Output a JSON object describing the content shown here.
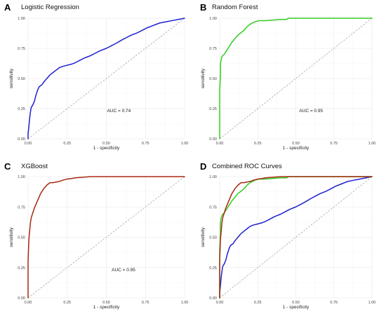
{
  "colors": {
    "logistic": "#1f1fcf",
    "random_forest": "#33cc1f",
    "xgboost": "#a8280f",
    "diagonal": "#9a9a9a"
  },
  "chart_data": [
    {
      "panel": "A",
      "type": "line",
      "title": "Logistic Regression",
      "xlabel": "1 - specificity",
      "ylabel": "sensitivity",
      "xlim": [
        0,
        1
      ],
      "ylim": [
        0,
        1
      ],
      "xticks": [
        "0.00",
        "0.25",
        "0.50",
        "0.75",
        "1.00"
      ],
      "yticks": [
        "0.00",
        "0.25",
        "0.50",
        "0.75",
        "1.00"
      ],
      "grid": true,
      "annotation": "AUC = 0.74",
      "series": [
        {
          "key": "logistic",
          "x": [
            0,
            0,
            0.005,
            0.01,
            0.015,
            0.02,
            0.03,
            0.04,
            0.05,
            0.06,
            0.07,
            0.08,
            0.09,
            0.1,
            0.12,
            0.14,
            0.16,
            0.18,
            0.2,
            0.22,
            0.25,
            0.28,
            0.3,
            0.33,
            0.36,
            0.4,
            0.43,
            0.46,
            0.5,
            0.53,
            0.56,
            0.6,
            0.63,
            0.66,
            0.7,
            0.73,
            0.76,
            0.8,
            0.84,
            0.88,
            0.92,
            0.96,
            1.0
          ],
          "y": [
            0,
            0.04,
            0.1,
            0.17,
            0.22,
            0.26,
            0.28,
            0.31,
            0.36,
            0.4,
            0.43,
            0.44,
            0.45,
            0.47,
            0.5,
            0.53,
            0.55,
            0.57,
            0.59,
            0.6,
            0.61,
            0.62,
            0.63,
            0.65,
            0.67,
            0.69,
            0.71,
            0.73,
            0.75,
            0.77,
            0.79,
            0.82,
            0.84,
            0.86,
            0.88,
            0.9,
            0.92,
            0.94,
            0.96,
            0.97,
            0.98,
            0.99,
            1.0
          ]
        }
      ]
    },
    {
      "panel": "B",
      "type": "line",
      "title": "Random Forest",
      "xlabel": "1 - specificity",
      "ylabel": "sensitivity",
      "xlim": [
        0,
        1
      ],
      "ylim": [
        0,
        1
      ],
      "xticks": [
        "0.00",
        "0.25",
        "0.50",
        "0.75",
        "1.00"
      ],
      "yticks": [
        "0.00",
        "0.25",
        "0.50",
        "0.75",
        "1.00"
      ],
      "grid": true,
      "annotation": "AUC = 0.95",
      "series": [
        {
          "key": "random_forest",
          "x": [
            0,
            0,
            0.005,
            0.005,
            0.01,
            0.015,
            0.02,
            0.03,
            0.04,
            0.05,
            0.06,
            0.07,
            0.08,
            0.1,
            0.12,
            0.14,
            0.16,
            0.18,
            0.2,
            0.23,
            0.26,
            0.3,
            0.35,
            0.4,
            0.44,
            0.45,
            0.5,
            0.6,
            0.7,
            0.8,
            0.9,
            1.0
          ],
          "y": [
            0,
            0.4,
            0.52,
            0.62,
            0.66,
            0.68,
            0.69,
            0.7,
            0.72,
            0.74,
            0.76,
            0.78,
            0.8,
            0.83,
            0.86,
            0.88,
            0.9,
            0.93,
            0.95,
            0.97,
            0.98,
            0.98,
            0.985,
            0.99,
            0.99,
            1.0,
            1.0,
            1.0,
            1.0,
            1.0,
            1.0,
            1.0
          ]
        }
      ]
    },
    {
      "panel": "C",
      "type": "line",
      "title": "XGBoost",
      "xlabel": "1 - specificity",
      "ylabel": "sensitivity",
      "xlim": [
        0,
        1
      ],
      "ylim": [
        0,
        1
      ],
      "xticks": [
        "0.00",
        "0.25",
        "0.50",
        "0.75",
        "1.00"
      ],
      "yticks": [
        "0.00",
        "0.25",
        "0.50",
        "0.75",
        "1.00"
      ],
      "grid": true,
      "annotation": "AUC = 0.95",
      "series": [
        {
          "key": "xgboost",
          "x": [
            0,
            0,
            0.005,
            0.01,
            0.015,
            0.02,
            0.03,
            0.04,
            0.05,
            0.06,
            0.07,
            0.08,
            0.1,
            0.12,
            0.14,
            0.16,
            0.18,
            0.2,
            0.22,
            0.25,
            0.28,
            0.3,
            0.35,
            0.4,
            0.45,
            0.5,
            0.6,
            0.7,
            0.8,
            0.9,
            1.0
          ],
          "y": [
            0,
            0.3,
            0.48,
            0.55,
            0.62,
            0.66,
            0.7,
            0.74,
            0.77,
            0.8,
            0.83,
            0.86,
            0.9,
            0.93,
            0.95,
            0.95,
            0.955,
            0.96,
            0.97,
            0.98,
            0.985,
            0.99,
            0.995,
            1.0,
            1.0,
            1.0,
            1.0,
            1.0,
            1.0,
            1.0,
            1.0
          ]
        }
      ]
    },
    {
      "panel": "D",
      "type": "line",
      "title": "Combined ROC Curves",
      "xlabel": "1 - specificity",
      "ylabel": "sensitivity",
      "xlim": [
        0,
        1
      ],
      "ylim": [
        0,
        1
      ],
      "xticks": [
        "0.00",
        "0.25",
        "0.50",
        "0.75",
        "1.00"
      ],
      "yticks": [
        "0.00",
        "0.25",
        "0.50",
        "0.75",
        "1.00"
      ],
      "grid": true,
      "annotation": "",
      "series": [
        {
          "key": "logistic",
          "x": [
            0,
            0,
            0.005,
            0.01,
            0.015,
            0.02,
            0.03,
            0.04,
            0.05,
            0.06,
            0.07,
            0.08,
            0.09,
            0.1,
            0.12,
            0.14,
            0.16,
            0.18,
            0.2,
            0.22,
            0.25,
            0.28,
            0.3,
            0.33,
            0.36,
            0.4,
            0.43,
            0.46,
            0.5,
            0.53,
            0.56,
            0.6,
            0.63,
            0.66,
            0.7,
            0.73,
            0.76,
            0.8,
            0.84,
            0.88,
            0.92,
            0.96,
            1.0
          ],
          "y": [
            0,
            0.04,
            0.1,
            0.17,
            0.22,
            0.26,
            0.28,
            0.31,
            0.36,
            0.4,
            0.43,
            0.44,
            0.45,
            0.47,
            0.5,
            0.53,
            0.55,
            0.57,
            0.59,
            0.6,
            0.61,
            0.62,
            0.63,
            0.65,
            0.67,
            0.69,
            0.71,
            0.73,
            0.75,
            0.77,
            0.79,
            0.82,
            0.84,
            0.86,
            0.88,
            0.9,
            0.92,
            0.94,
            0.96,
            0.97,
            0.98,
            0.99,
            1.0
          ]
        },
        {
          "key": "random_forest",
          "x": [
            0,
            0,
            0.005,
            0.005,
            0.01,
            0.015,
            0.02,
            0.03,
            0.04,
            0.05,
            0.06,
            0.07,
            0.08,
            0.1,
            0.12,
            0.14,
            0.16,
            0.18,
            0.2,
            0.23,
            0.26,
            0.3,
            0.35,
            0.4,
            0.44,
            0.45,
            0.5,
            0.6,
            0.7,
            0.8,
            0.9,
            1.0
          ],
          "y": [
            0,
            0.4,
            0.52,
            0.62,
            0.66,
            0.68,
            0.69,
            0.7,
            0.72,
            0.74,
            0.76,
            0.78,
            0.8,
            0.83,
            0.86,
            0.88,
            0.9,
            0.93,
            0.95,
            0.97,
            0.98,
            0.98,
            0.985,
            0.99,
            0.99,
            1.0,
            1.0,
            1.0,
            1.0,
            1.0,
            1.0,
            1.0
          ]
        },
        {
          "key": "xgboost",
          "x": [
            0,
            0,
            0.005,
            0.01,
            0.015,
            0.02,
            0.03,
            0.04,
            0.05,
            0.06,
            0.07,
            0.08,
            0.1,
            0.12,
            0.14,
            0.16,
            0.18,
            0.2,
            0.22,
            0.25,
            0.28,
            0.3,
            0.35,
            0.4,
            0.45,
            0.5,
            0.6,
            0.7,
            0.8,
            0.9,
            1.0
          ],
          "y": [
            0,
            0.3,
            0.48,
            0.55,
            0.62,
            0.66,
            0.7,
            0.74,
            0.77,
            0.8,
            0.83,
            0.86,
            0.9,
            0.93,
            0.95,
            0.95,
            0.955,
            0.96,
            0.97,
            0.98,
            0.985,
            0.99,
            0.995,
            1.0,
            1.0,
            1.0,
            1.0,
            1.0,
            1.0,
            1.0,
            1.0
          ]
        }
      ]
    }
  ]
}
